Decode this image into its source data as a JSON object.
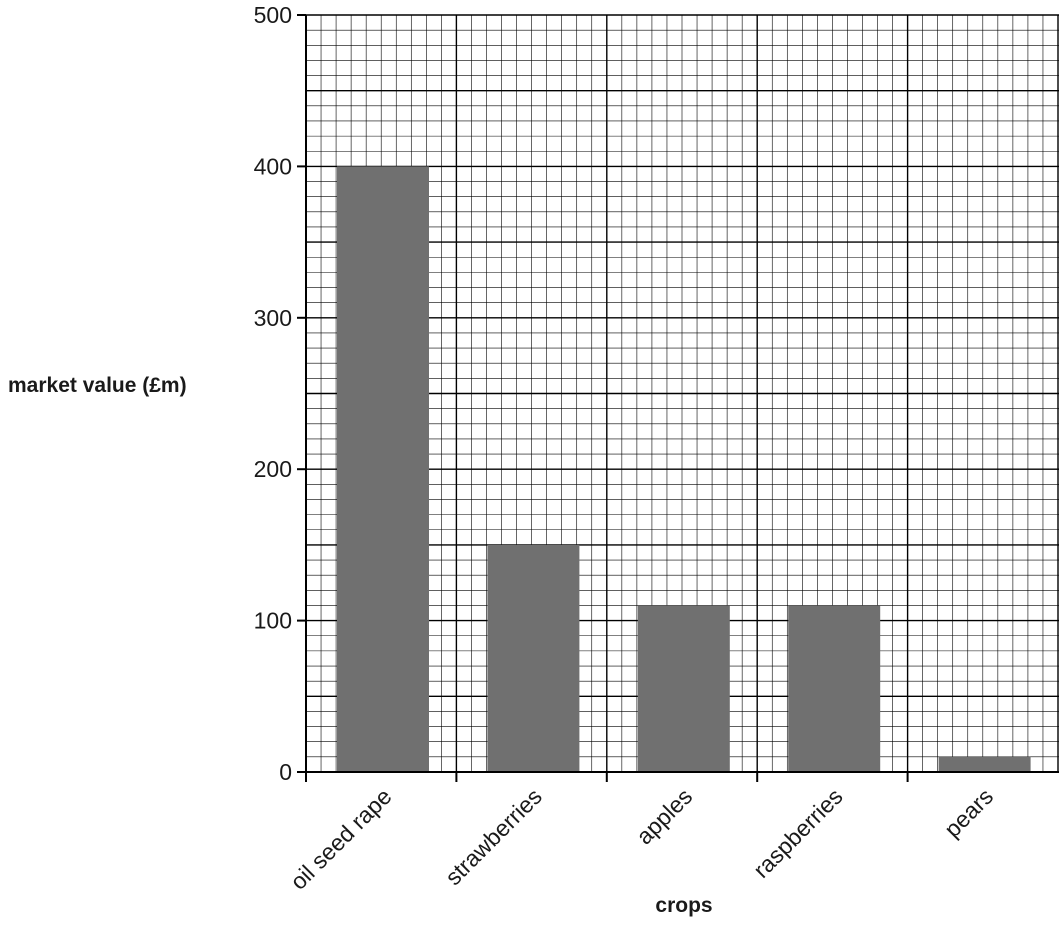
{
  "chart_data": {
    "type": "bar",
    "title": "",
    "xlabel": "crops",
    "ylabel": "market value (£m)",
    "categories": [
      "oil seed rape",
      "strawberries",
      "apples",
      "raspberries",
      "pears"
    ],
    "values": [
      400,
      150,
      110,
      110,
      10
    ],
    "ylim": [
      0,
      500
    ],
    "yticks": [
      "0",
      "100",
      "200",
      "300",
      "400",
      "500"
    ],
    "grid": true,
    "colors": {
      "bar": "#707070",
      "grid": "#000000",
      "axis": "#000000"
    }
  }
}
